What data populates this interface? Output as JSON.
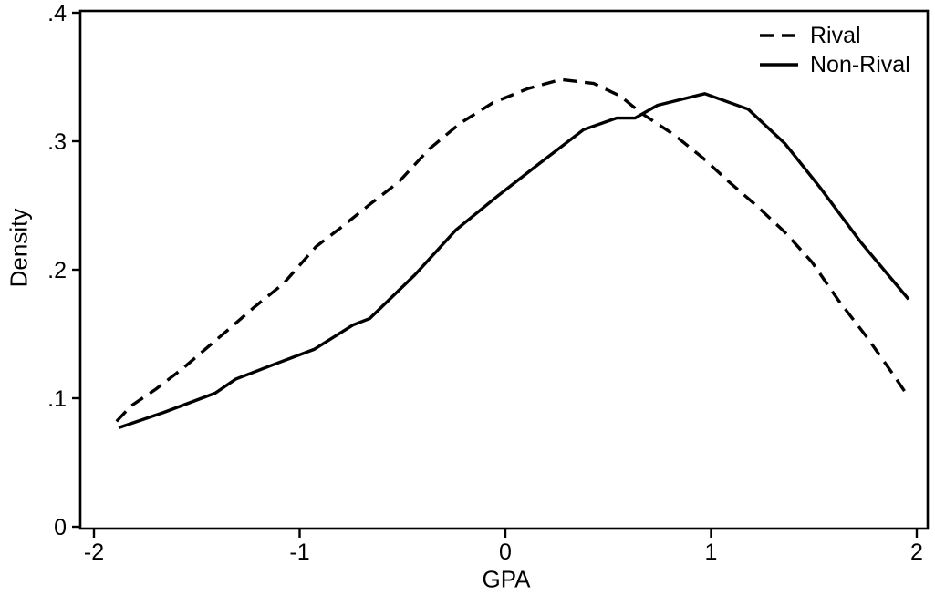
{
  "figure": {
    "background": "#ffffff",
    "ink": "#000000"
  },
  "chart_data": {
    "type": "line",
    "title": "",
    "xlabel": "GPA",
    "ylabel": "Density",
    "xlim": [
      -2.07,
      2.05
    ],
    "ylim": [
      0,
      0.401
    ],
    "grid": false,
    "legend_position": "top-right-inside",
    "x_ticks": [
      {
        "v": -2,
        "label": "-2"
      },
      {
        "v": -1,
        "label": "-1"
      },
      {
        "v": 0,
        "label": "0"
      },
      {
        "v": 1,
        "label": "1"
      },
      {
        "v": 2,
        "label": "2"
      }
    ],
    "y_ticks": [
      {
        "v": 0,
        "label": "0"
      },
      {
        "v": 0.1,
        "label": ".1"
      },
      {
        "v": 0.2,
        "label": ".2"
      },
      {
        "v": 0.3,
        "label": ".3"
      },
      {
        "v": 0.4,
        "label": ".4"
      }
    ],
    "series": [
      {
        "name": "Rival",
        "style": "dashed",
        "color": "#000000",
        "points": [
          [
            -1.89,
            0.082
          ],
          [
            -1.82,
            0.094
          ],
          [
            -1.7,
            0.107
          ],
          [
            -1.57,
            0.123
          ],
          [
            -1.46,
            0.138
          ],
          [
            -1.35,
            0.153
          ],
          [
            -1.22,
            0.171
          ],
          [
            -1.08,
            0.189
          ],
          [
            -0.92,
            0.218
          ],
          [
            -0.79,
            0.234
          ],
          [
            -0.65,
            0.252
          ],
          [
            -0.52,
            0.268
          ],
          [
            -0.37,
            0.294
          ],
          [
            -0.22,
            0.314
          ],
          [
            -0.06,
            0.33
          ],
          [
            0.11,
            0.341
          ],
          [
            0.27,
            0.348
          ],
          [
            0.43,
            0.345
          ],
          [
            0.56,
            0.335
          ],
          [
            0.66,
            0.322
          ],
          [
            0.82,
            0.305
          ],
          [
            0.96,
            0.287
          ],
          [
            1.09,
            0.268
          ],
          [
            1.22,
            0.25
          ],
          [
            1.36,
            0.229
          ],
          [
            1.49,
            0.206
          ],
          [
            1.62,
            0.176
          ],
          [
            1.76,
            0.147
          ],
          [
            1.87,
            0.122
          ],
          [
            1.96,
            0.101
          ]
        ]
      },
      {
        "name": "Non-Rival",
        "style": "solid",
        "color": "#000000",
        "points": [
          [
            -1.88,
            0.077
          ],
          [
            -1.66,
            0.089
          ],
          [
            -1.41,
            0.104
          ],
          [
            -1.31,
            0.115
          ],
          [
            -1.13,
            0.126
          ],
          [
            -0.93,
            0.138
          ],
          [
            -0.74,
            0.157
          ],
          [
            -0.66,
            0.162
          ],
          [
            -0.44,
            0.196
          ],
          [
            -0.24,
            0.231
          ],
          [
            -0.04,
            0.257
          ],
          [
            0.16,
            0.282
          ],
          [
            0.38,
            0.309
          ],
          [
            0.54,
            0.318
          ],
          [
            0.63,
            0.318
          ],
          [
            0.74,
            0.328
          ],
          [
            0.97,
            0.337
          ],
          [
            1.18,
            0.325
          ],
          [
            1.36,
            0.298
          ],
          [
            1.53,
            0.264
          ],
          [
            1.73,
            0.221
          ],
          [
            1.96,
            0.177
          ]
        ]
      }
    ]
  }
}
